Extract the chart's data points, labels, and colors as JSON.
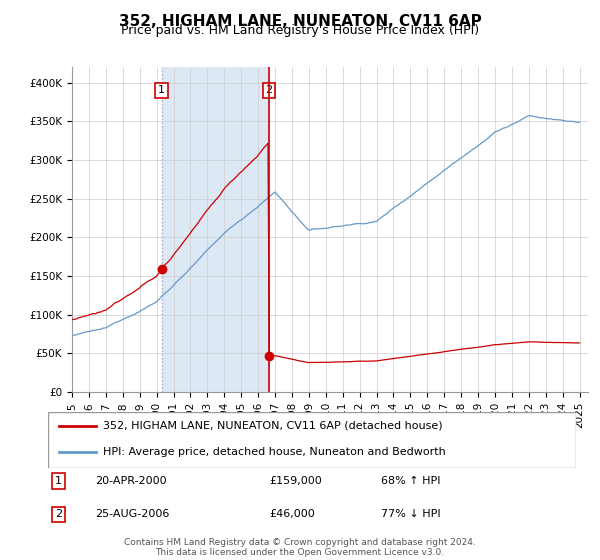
{
  "title": "352, HIGHAM LANE, NUNEATON, CV11 6AP",
  "subtitle": "Price paid vs. HM Land Registry's House Price Index (HPI)",
  "footer": "Contains HM Land Registry data © Crown copyright and database right 2024.\nThis data is licensed under the Open Government Licence v3.0.",
  "legend_line1": "352, HIGHAM LANE, NUNEATON, CV11 6AP (detached house)",
  "legend_line2": "HPI: Average price, detached house, Nuneaton and Bedworth",
  "ann1_label": "1",
  "ann1_date": "20-APR-2000",
  "ann1_price": "£159,000",
  "ann1_pct": "68% ↑ HPI",
  "ann2_label": "2",
  "ann2_date": "25-AUG-2006",
  "ann2_price": "£46,000",
  "ann2_pct": "77% ↓ HPI",
  "sale1_year": 2000.3,
  "sale1_value": 159000,
  "sale2_year": 2006.65,
  "sale2_value": 46000,
  "red_color": "#cc0000",
  "blue_color": "#6699cc",
  "shade_color": "#dde8f5",
  "grid_color": "#cccccc",
  "bg_color": "#ffffff",
  "ylim": [
    0,
    420000
  ],
  "xlim_start": 1995,
  "xlim_end": 2025.5,
  "title_fontsize": 11,
  "subtitle_fontsize": 9,
  "tick_fontsize": 7.5,
  "legend_fontsize": 8,
  "ann_fontsize": 8,
  "footer_fontsize": 6.5
}
